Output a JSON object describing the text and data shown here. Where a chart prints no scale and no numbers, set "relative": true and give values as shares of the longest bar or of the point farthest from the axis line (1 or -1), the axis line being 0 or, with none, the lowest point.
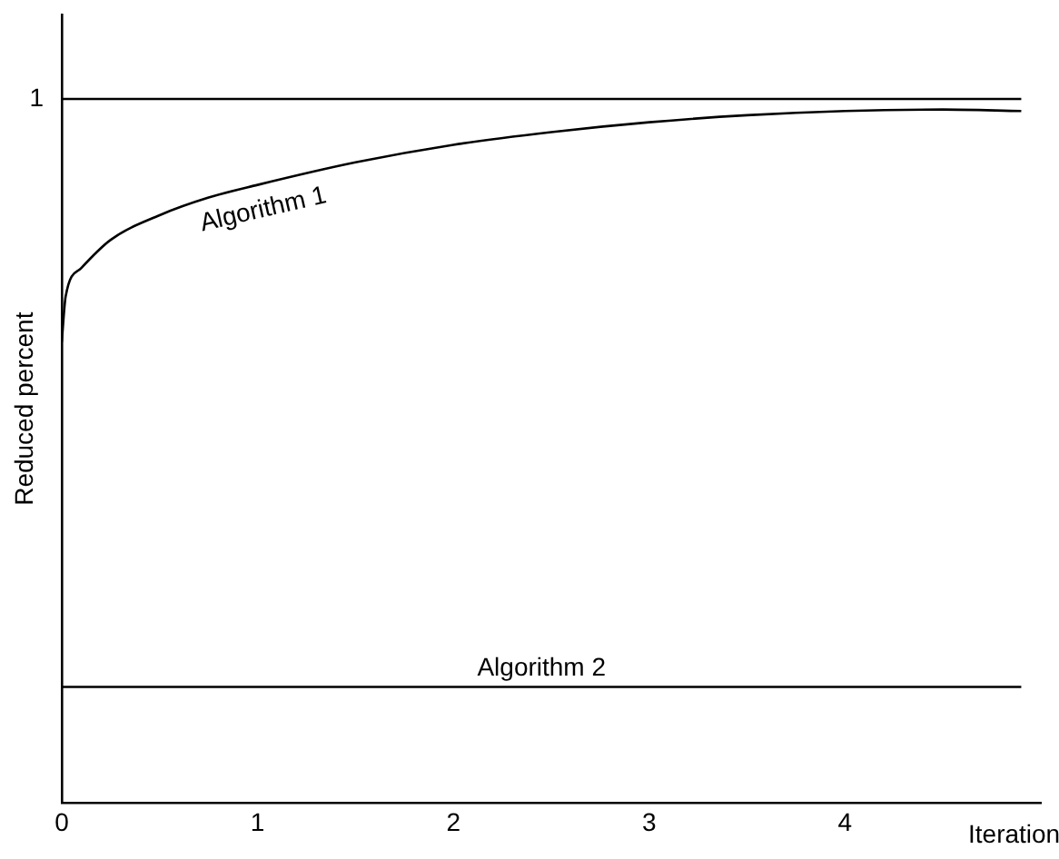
{
  "chart_data": {
    "type": "line",
    "relative": true,
    "xlabel": "Iteration",
    "ylabel": "Reduced percent",
    "xlim": [
      0,
      5
    ],
    "xticks": [
      0,
      1,
      2,
      3,
      4
    ],
    "grid": false,
    "legend": false,
    "marker": "none",
    "line_style": "solid",
    "annotations": [
      {
        "text": "1",
        "x": 0,
        "y": 1
      }
    ],
    "series": [
      {
        "color": "#000000",
        "x": [
          0,
          4.9
        ],
        "values": [
          1,
          1
        ]
      },
      {
        "name": "Algorithm 1",
        "color": "#000000",
        "x": [
          0,
          0.02,
          0.1,
          0.25,
          0.5,
          0.75,
          1,
          1.5,
          2,
          2.5,
          3,
          3.5,
          4,
          4.5,
          4.9
        ],
        "values": [
          0.655,
          0.72,
          0.76,
          0.8,
          0.835,
          0.86,
          0.878,
          0.91,
          0.935,
          0.953,
          0.967,
          0.977,
          0.983,
          0.985,
          0.983
        ]
      },
      {
        "name": "Algorithm 2",
        "color": "#000000",
        "x": [
          0,
          4.9
        ],
        "values": [
          0.165,
          0.165
        ]
      }
    ]
  }
}
